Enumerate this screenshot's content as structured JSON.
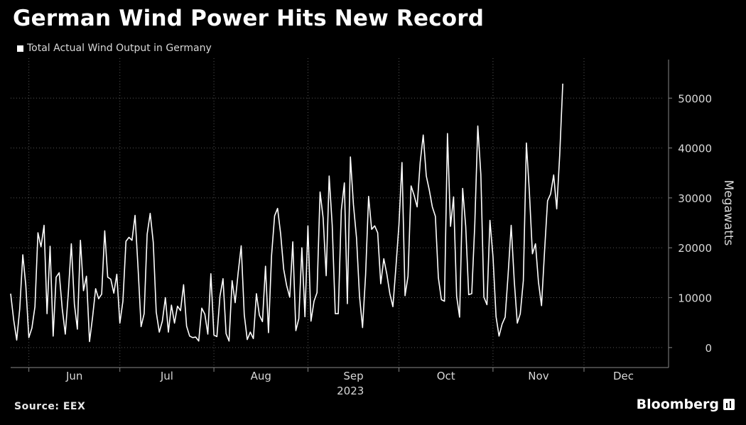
{
  "chart_data": {
    "type": "line",
    "title": "German Wind Power Hits New Record",
    "ylabel": "Megawatts",
    "xlabel": "2023",
    "source": "Source: EEX",
    "brand": "Bloomberg",
    "ylim": [
      -4000,
      58000
    ],
    "yticks": [
      0,
      10000,
      20000,
      30000,
      40000,
      50000
    ],
    "x_range": [
      "2023-05-26",
      "2023-12-27"
    ],
    "month_ticks": [
      {
        "label": "Jun",
        "date": "2023-06-01"
      },
      {
        "label": "Jul",
        "date": "2023-07-01"
      },
      {
        "label": "Aug",
        "date": "2023-08-01"
      },
      {
        "label": "Sep",
        "date": "2023-09-01"
      },
      {
        "label": "Oct",
        "date": "2023-10-01"
      },
      {
        "label": "Nov",
        "date": "2023-11-01"
      },
      {
        "label": "Dec",
        "date": "2023-12-01"
      }
    ],
    "grid": true,
    "legend_position": "top-left",
    "colors": {
      "background": "#000000",
      "line": "#ffffff",
      "grid": "#555555",
      "text": "#d8d8d8"
    },
    "series": [
      {
        "name": "Total Actual Wind Output in Germany",
        "start_date": "2023-05-26",
        "values": [
          10800,
          5500,
          1500,
          7800,
          18600,
          12500,
          2000,
          3900,
          8200,
          23000,
          20200,
          24500,
          6800,
          20300,
          2300,
          14100,
          15000,
          7800,
          2700,
          10800,
          20800,
          8700,
          3700,
          21500,
          11400,
          14300,
          1200,
          6100,
          11800,
          9800,
          10700,
          23400,
          14100,
          13700,
          10900,
          14700,
          4900,
          9300,
          21300,
          22100,
          21500,
          26500,
          16000,
          4200,
          6800,
          22700,
          26900,
          21100,
          7100,
          3100,
          5300,
          10000,
          3100,
          8500,
          4900,
          8300,
          7400,
          12600,
          4300,
          2300,
          2000,
          2100,
          1300,
          7900,
          6700,
          2700,
          14800,
          2500,
          2200,
          10300,
          13800,
          2800,
          1300,
          13400,
          9000,
          15000,
          20400,
          6600,
          1600,
          3100,
          1800,
          10800,
          6500,
          5200,
          16300,
          3000,
          18400,
          26400,
          27900,
          22800,
          15700,
          12400,
          10100,
          21200,
          3400,
          5800,
          20000,
          6200,
          24400,
          5300,
          9300,
          11000,
          31200,
          26000,
          14400,
          34400,
          24500,
          6800,
          6800,
          27500,
          33000,
          8800,
          38200,
          28600,
          22000,
          10300,
          4000,
          14600,
          30300,
          23700,
          24400,
          23000,
          12800,
          17800,
          14700,
          10800,
          8200,
          16200,
          24600,
          37100,
          10400,
          14300,
          32400,
          30500,
          28200,
          37100,
          42600,
          34400,
          31600,
          28200,
          26300,
          14000,
          9600,
          9300,
          42900,
          24300,
          30200,
          10300,
          6100,
          31900,
          24300,
          10600,
          10800,
          24800,
          44400,
          34700,
          10100,
          8600,
          25500,
          18200,
          6200,
          2300,
          4700,
          6100,
          14700,
          24500,
          13400,
          4900,
          6800,
          13400,
          41000,
          31200,
          18800,
          20800,
          13100,
          8400,
          19400,
          29400,
          30800,
          34600,
          27800,
          38600,
          52900
        ]
      }
    ]
  }
}
